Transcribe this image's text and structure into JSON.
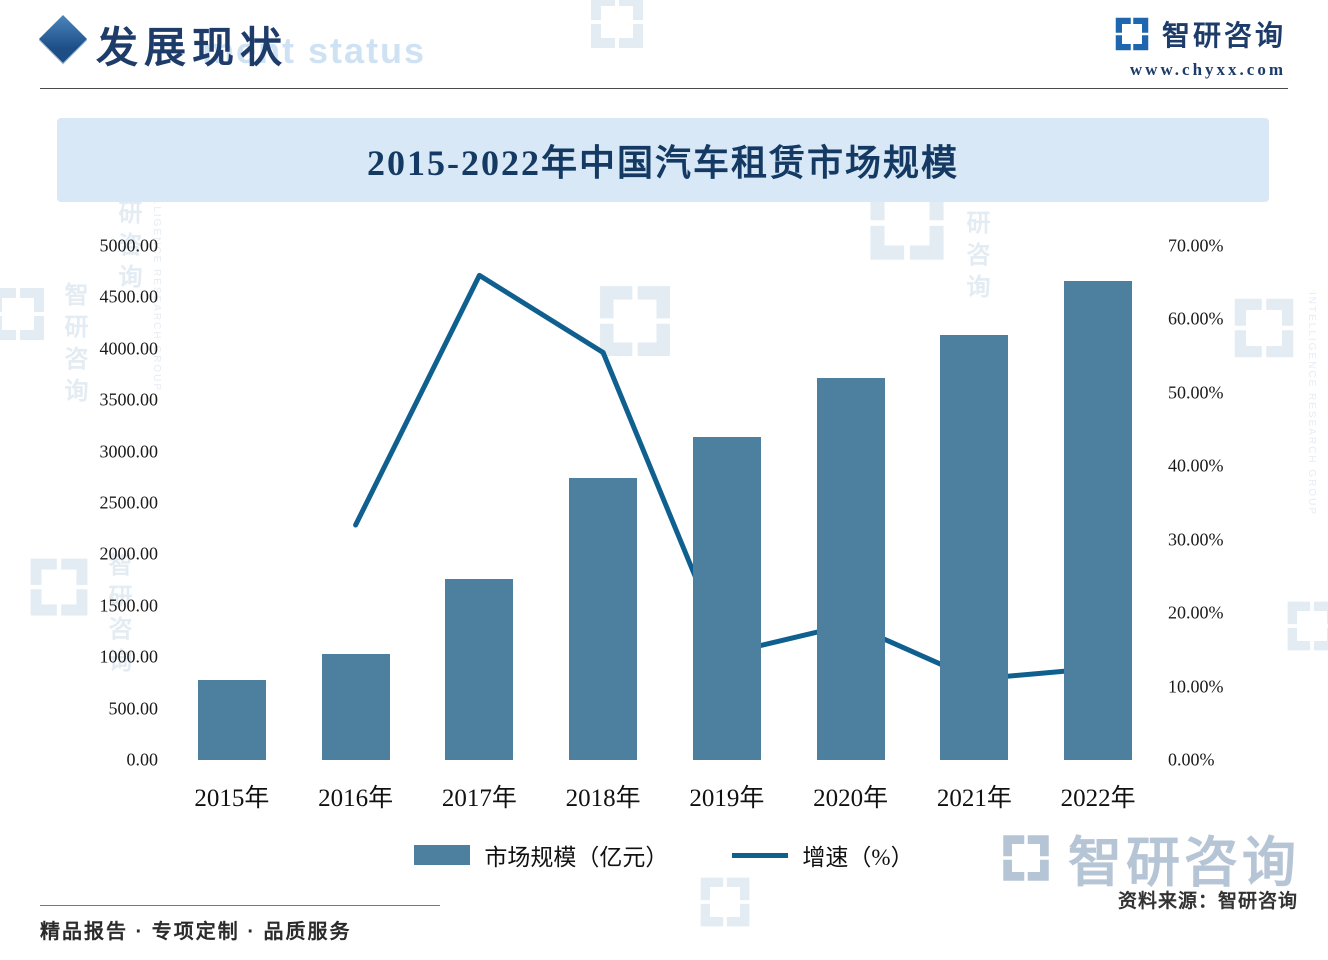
{
  "header": {
    "section_title": "发展现状",
    "section_title_ghost": "ment status",
    "brand_name": "智研咨询",
    "brand_url": "www.chyxx.com"
  },
  "chart_data": {
    "type": "combo",
    "title": "2015-2022年中国汽车租赁市场规模",
    "categories": [
      "2015年",
      "2016年",
      "2017年",
      "2018年",
      "2019年",
      "2020年",
      "2021年",
      "2022年"
    ],
    "series": [
      {
        "name": "市场规模（亿元）",
        "type": "bar",
        "values": [
          780,
          1030,
          1760,
          2740,
          3140,
          3720,
          4130,
          4660
        ]
      },
      {
        "name": "增速（%）",
        "type": "line",
        "values": [
          null,
          32.0,
          66.0,
          55.5,
          14.5,
          18.5,
          11.0,
          12.5
        ]
      }
    ],
    "left_axis": {
      "min": 0,
      "max": 5000,
      "step": 500,
      "tick_labels": [
        "5000.00",
        "4500.00",
        "4000.00",
        "3500.00",
        "3000.00",
        "2500.00",
        "2000.00",
        "1500.00",
        "1000.00",
        "500.00",
        "0.00"
      ]
    },
    "right_axis": {
      "min": 0,
      "max": 70,
      "step": 10,
      "tick_labels": [
        "70.00%",
        "60.00%",
        "50.00%",
        "40.00%",
        "30.00%",
        "20.00%",
        "10.00%",
        "0.00%"
      ]
    },
    "grid": "off",
    "legend_position": "bottom",
    "colors": {
      "bar": "#4d7f9f",
      "line": "#10608f"
    }
  },
  "watermark": {
    "brand": "智研咨询",
    "group_en": "INTELLIGENCE RESEARCH GROUP"
  },
  "footer": {
    "source": "资料来源：智研咨询",
    "services": "精品报告 · 专项定制 · 品质服务"
  }
}
